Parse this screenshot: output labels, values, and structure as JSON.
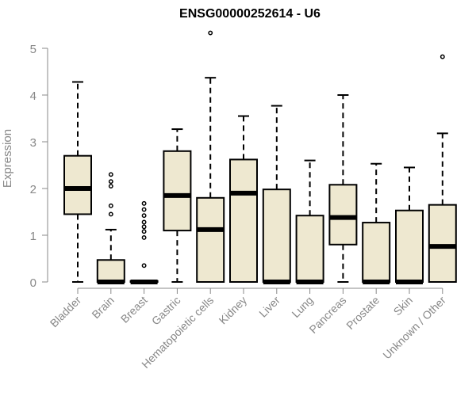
{
  "chart_data": {
    "type": "box",
    "title": "ENSG00000252614 - U6",
    "xlabel": "",
    "ylabel": "Expression",
    "ylim": [
      0,
      5
    ],
    "yticks": [
      0,
      1,
      2,
      3,
      4,
      5
    ],
    "grid": false,
    "colors": {
      "box_fill": "#EEE8D0",
      "stroke": "#000000",
      "axis": "#888888"
    },
    "categories": [
      "Bladder",
      "Brain",
      "Breast",
      "Gastric",
      "Hematopoietic cells",
      "Kidney",
      "Liver",
      "Lung",
      "Pancreas",
      "Prostate",
      "Skin",
      "Unknown / Other"
    ],
    "boxes": [
      {
        "whisker_low": 0,
        "q1": 1.45,
        "median": 2.0,
        "q3": 2.7,
        "whisker_high": 4.28,
        "outliers": []
      },
      {
        "whisker_low": 0,
        "q1": 0,
        "median": 0.0,
        "q3": 0.47,
        "whisker_high": 1.12,
        "outliers": [
          1.45,
          1.63,
          2.05,
          2.15,
          2.3
        ]
      },
      {
        "whisker_low": 0,
        "q1": 0,
        "median": 0.0,
        "q3": 0.02,
        "whisker_high": 0.03,
        "outliers": [
          0.35,
          0.95,
          1.08,
          1.18,
          1.28,
          1.42,
          1.55,
          1.68
        ]
      },
      {
        "whisker_low": 0,
        "q1": 1.1,
        "median": 1.85,
        "q3": 2.8,
        "whisker_high": 3.27,
        "outliers": []
      },
      {
        "whisker_low": 0,
        "q1": 0,
        "median": 1.12,
        "q3": 1.8,
        "whisker_high": 4.37,
        "outliers": [
          5.33
        ]
      },
      {
        "whisker_low": 0,
        "q1": 0,
        "median": 1.9,
        "q3": 2.62,
        "whisker_high": 3.55,
        "outliers": []
      },
      {
        "whisker_low": 0,
        "q1": 0,
        "median": 0.0,
        "q3": 1.98,
        "whisker_high": 3.77,
        "outliers": []
      },
      {
        "whisker_low": 0,
        "q1": 0,
        "median": 0.0,
        "q3": 1.42,
        "whisker_high": 2.6,
        "outliers": []
      },
      {
        "whisker_low": 0,
        "q1": 0.8,
        "median": 1.38,
        "q3": 2.08,
        "whisker_high": 4.0,
        "outliers": []
      },
      {
        "whisker_low": 0,
        "q1": 0,
        "median": 0.0,
        "q3": 1.27,
        "whisker_high": 2.53,
        "outliers": []
      },
      {
        "whisker_low": 0,
        "q1": 0,
        "median": 0.0,
        "q3": 1.53,
        "whisker_high": 2.45,
        "outliers": []
      },
      {
        "whisker_low": 0,
        "q1": 0,
        "median": 0.76,
        "q3": 1.65,
        "whisker_high": 3.18,
        "outliers": [
          4.82
        ]
      }
    ]
  }
}
